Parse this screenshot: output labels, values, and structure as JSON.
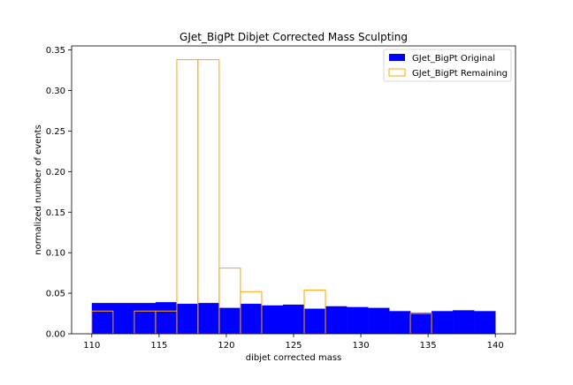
{
  "chart_data": {
    "type": "bar",
    "title": "GJet_BigPt Dibjet Corrected Mass Sculpting",
    "xlabel": "dibjet corrected mass",
    "ylabel": "normalized number of events",
    "xlim": [
      108.5,
      141.5
    ],
    "ylim": [
      0,
      0.355
    ],
    "xticks": [
      110,
      115,
      120,
      125,
      130,
      135,
      140
    ],
    "yticks": [
      0.0,
      0.05,
      0.1,
      0.15,
      0.2,
      0.25,
      0.3,
      0.35
    ],
    "ytick_labels": [
      "0.00",
      "0.05",
      "0.10",
      "0.15",
      "0.20",
      "0.25",
      "0.30",
      "0.35"
    ],
    "bin_edges": [
      110,
      111.58,
      113.16,
      114.74,
      116.32,
      117.89,
      119.47,
      121.05,
      122.63,
      124.21,
      125.79,
      127.37,
      128.95,
      130.53,
      132.11,
      133.68,
      135.26,
      136.84,
      138.42,
      140
    ],
    "legend_position": "top-right",
    "series": [
      {
        "name": "GJet_BigPt Original",
        "style": "filled",
        "color": "#0000ff",
        "values": [
          0.038,
          0.038,
          0.038,
          0.039,
          0.037,
          0.038,
          0.032,
          0.037,
          0.035,
          0.036,
          0.031,
          0.034,
          0.033,
          0.032,
          0.028,
          0.026,
          0.028,
          0.029,
          0.028
        ]
      },
      {
        "name": "GJet_BigPt Remaining",
        "style": "step",
        "color": "#ffa500",
        "values": [
          0.028,
          0.0,
          0.028,
          0.028,
          0.338,
          0.338,
          0.081,
          0.052,
          0.0,
          0.0,
          0.054,
          0.0,
          0.0,
          0.0,
          0.0,
          0.025,
          0.0,
          0.0,
          0.0
        ]
      }
    ]
  }
}
